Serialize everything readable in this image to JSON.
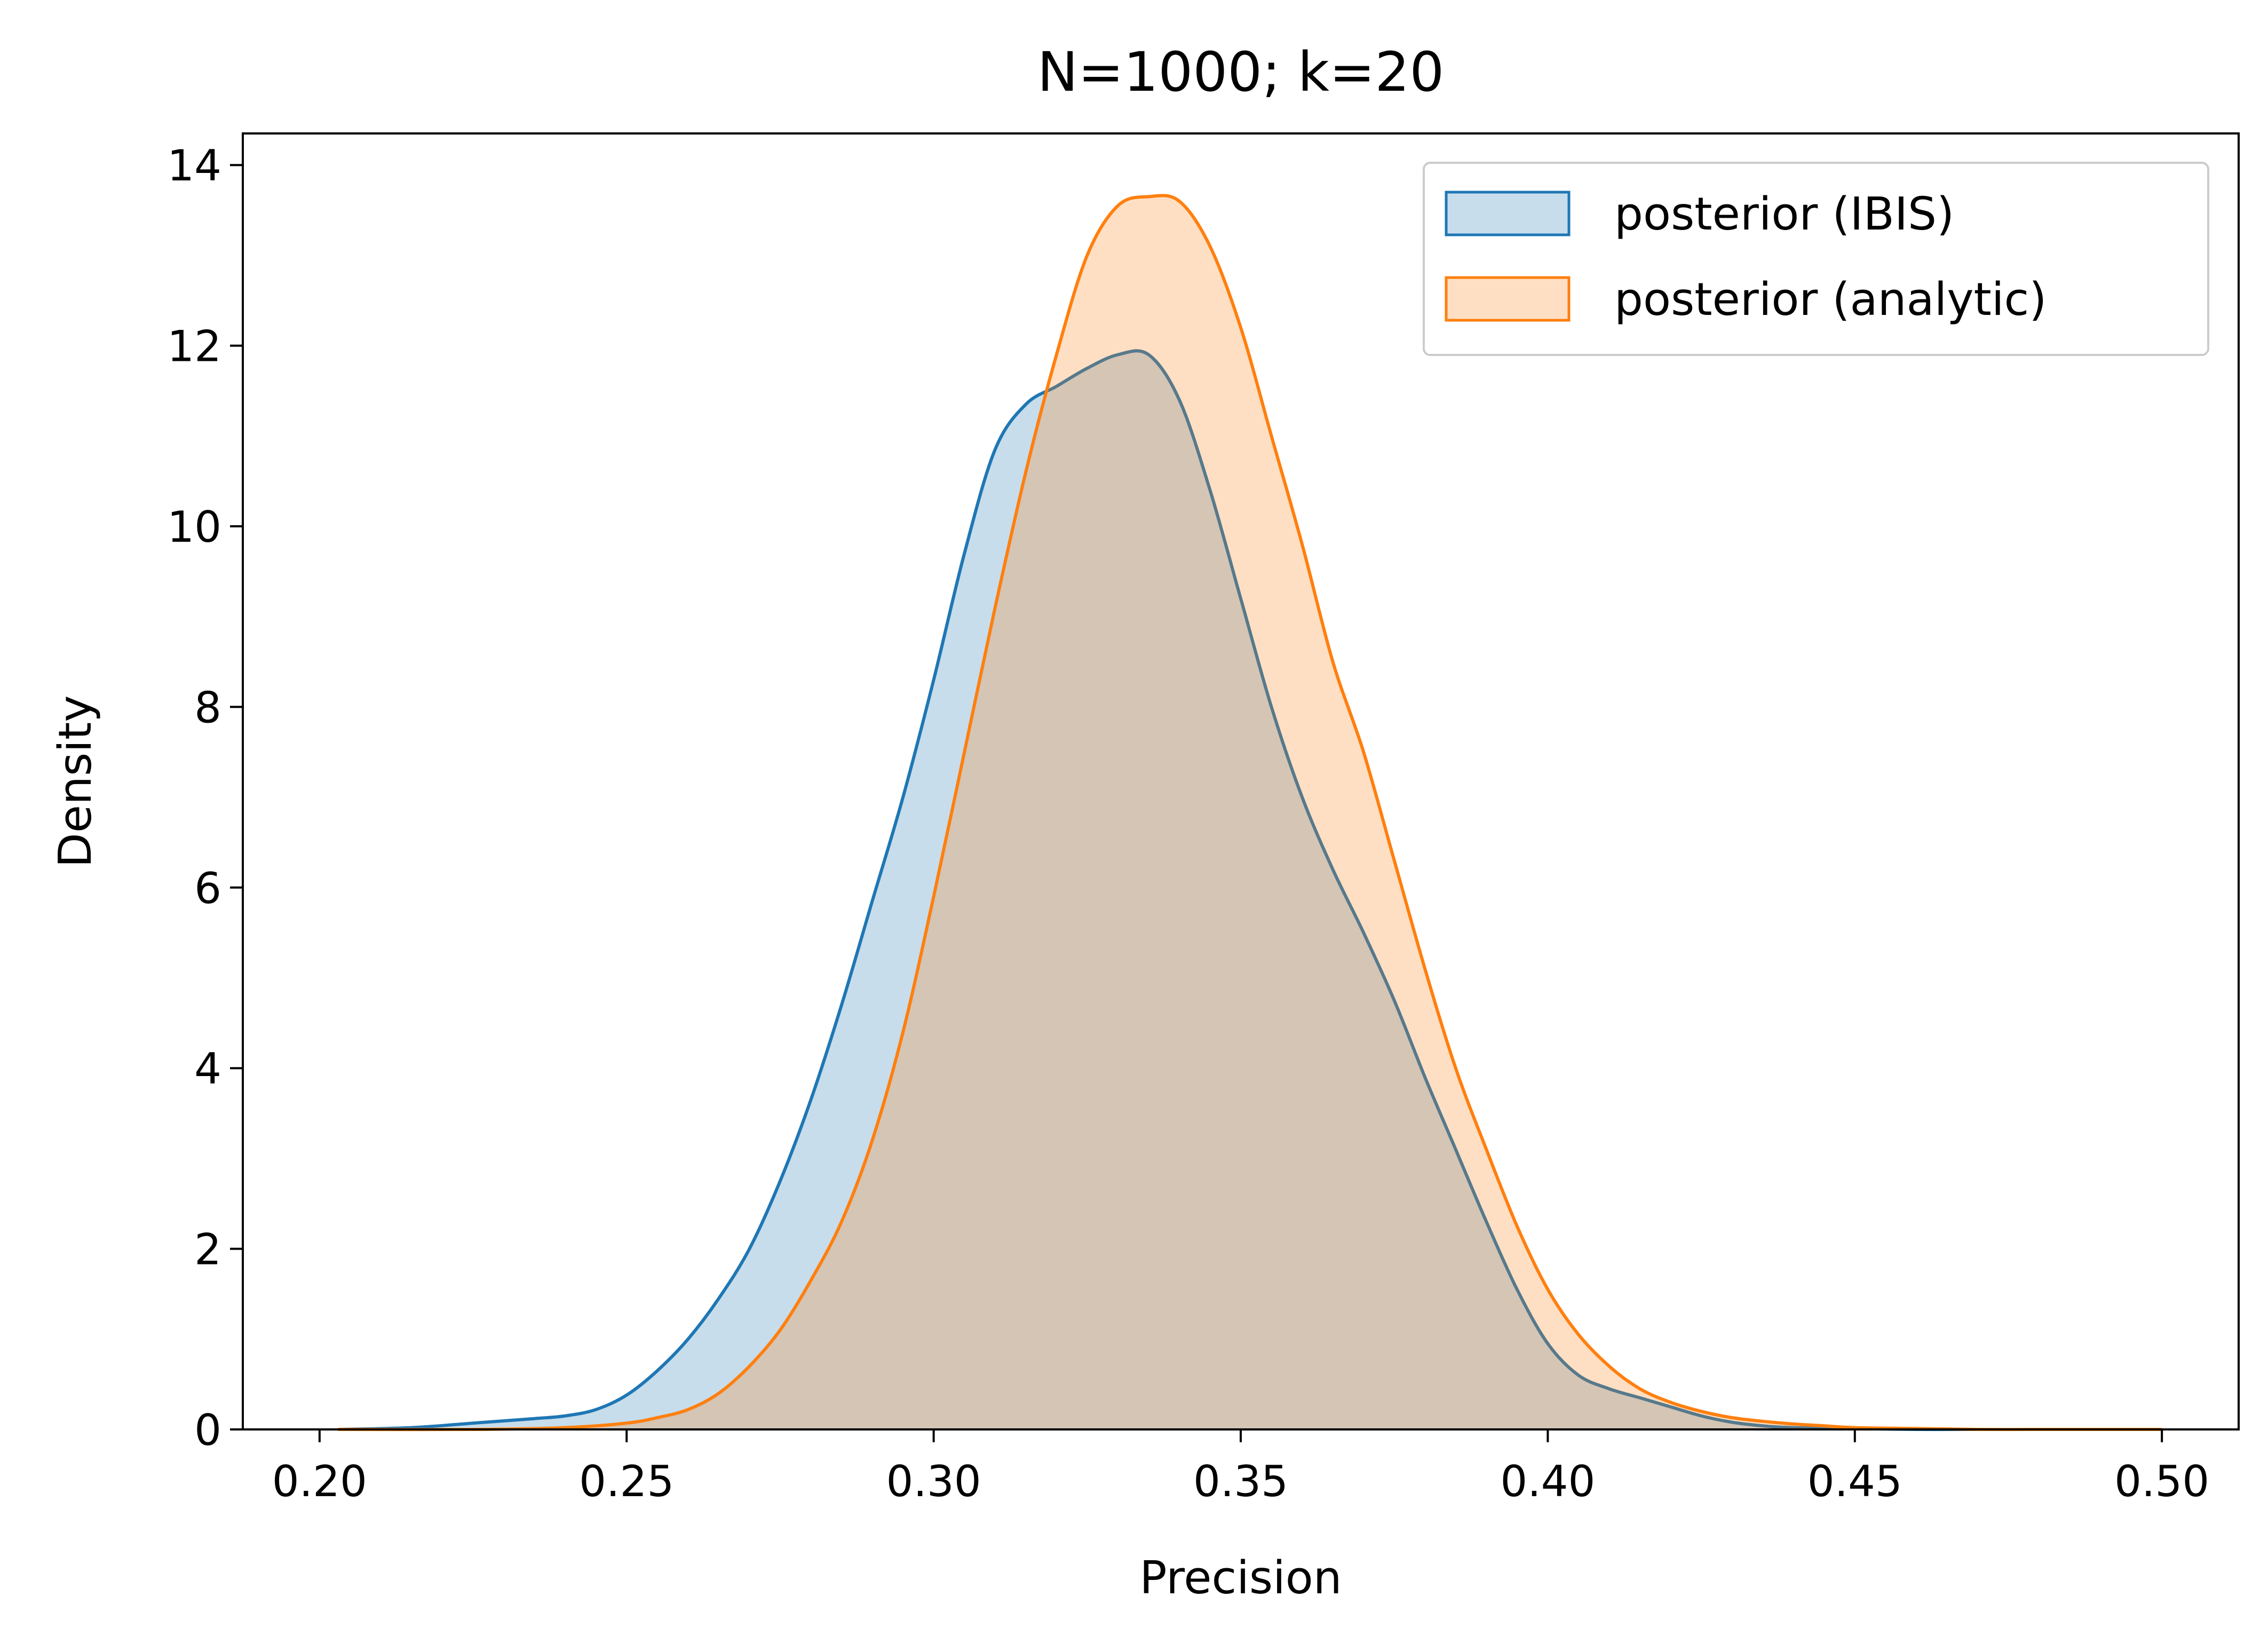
{
  "chart_data": {
    "type": "area",
    "title": "N=1000; k=20",
    "xlabel": "Precision",
    "ylabel": "Density",
    "xlim": [
      0.1875,
      0.5125
    ],
    "ylim": [
      0,
      14.35
    ],
    "xticks": [
      "0.20",
      "0.25",
      "0.30",
      "0.35",
      "0.40",
      "0.45",
      "0.50"
    ],
    "yticks": [
      "0",
      "2",
      "4",
      "6",
      "8",
      "10",
      "12",
      "14"
    ],
    "grid": false,
    "legend_position": "top-right",
    "series": [
      {
        "name": "posterior (IBIS)",
        "color": "#1f77b4",
        "x": [
          0.203,
          0.215,
          0.225,
          0.235,
          0.24,
          0.245,
          0.25,
          0.255,
          0.26,
          0.265,
          0.27,
          0.275,
          0.28,
          0.285,
          0.29,
          0.295,
          0.3,
          0.305,
          0.31,
          0.315,
          0.32,
          0.325,
          0.33,
          0.335,
          0.34,
          0.345,
          0.35,
          0.355,
          0.36,
          0.365,
          0.37,
          0.375,
          0.38,
          0.385,
          0.39,
          0.395,
          0.4,
          0.405,
          0.41,
          0.415,
          0.42,
          0.425,
          0.43,
          0.435,
          0.44,
          0.45,
          0.46,
          0.47
        ],
        "y": [
          0.0,
          0.02,
          0.07,
          0.12,
          0.15,
          0.22,
          0.38,
          0.65,
          1.0,
          1.45,
          2.0,
          2.75,
          3.65,
          4.7,
          5.85,
          7.0,
          8.3,
          9.7,
          10.85,
          11.35,
          11.55,
          11.75,
          11.9,
          11.9,
          11.4,
          10.4,
          9.2,
          8.0,
          7.0,
          6.2,
          5.5,
          4.75,
          3.9,
          3.1,
          2.3,
          1.55,
          0.95,
          0.6,
          0.45,
          0.35,
          0.25,
          0.15,
          0.08,
          0.04,
          0.02,
          0.01,
          0.0,
          0.0
        ]
      },
      {
        "name": "posterior (analytic)",
        "color": "#ff7f0e",
        "x": [
          0.203,
          0.225,
          0.24,
          0.25,
          0.255,
          0.26,
          0.265,
          0.27,
          0.275,
          0.28,
          0.285,
          0.29,
          0.295,
          0.3,
          0.305,
          0.31,
          0.315,
          0.32,
          0.325,
          0.33,
          0.335,
          0.34,
          0.345,
          0.35,
          0.355,
          0.36,
          0.365,
          0.37,
          0.375,
          0.38,
          0.385,
          0.39,
          0.395,
          0.4,
          0.405,
          0.41,
          0.415,
          0.42,
          0.425,
          0.43,
          0.435,
          0.44,
          0.445,
          0.45,
          0.46,
          0.47,
          0.48,
          0.49,
          0.5
        ],
        "y": [
          0.0,
          0.0,
          0.02,
          0.07,
          0.13,
          0.22,
          0.4,
          0.7,
          1.1,
          1.65,
          2.3,
          3.2,
          4.4,
          5.9,
          7.5,
          9.1,
          10.6,
          11.9,
          13.0,
          13.55,
          13.65,
          13.6,
          13.1,
          12.2,
          11.0,
          9.8,
          8.5,
          7.5,
          6.3,
          5.1,
          4.0,
          3.1,
          2.25,
          1.55,
          1.05,
          0.7,
          0.45,
          0.3,
          0.2,
          0.13,
          0.09,
          0.06,
          0.04,
          0.02,
          0.01,
          0.0,
          0.0,
          0.0,
          0.0
        ]
      }
    ]
  }
}
